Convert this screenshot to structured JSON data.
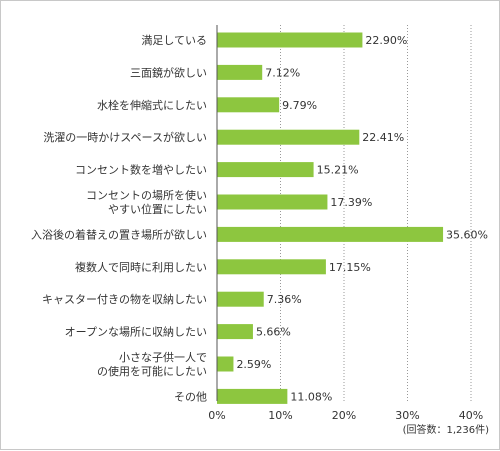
{
  "chart_data": {
    "type": "bar",
    "orientation": "horizontal",
    "categories": [
      [
        "満足している"
      ],
      [
        "三面鏡が欲しい"
      ],
      [
        "水栓を伸縮式にしたい"
      ],
      [
        "洗濯の一時かけスペースが欲しい"
      ],
      [
        "コンセント数を増やしたい"
      ],
      [
        "コンセントの場所を使い",
        "やすい位置にしたい"
      ],
      [
        "入浴後の着替えの置き場所が欲しい"
      ],
      [
        "複数人で同時に利用したい"
      ],
      [
        "キャスター付きの物を収納したい"
      ],
      [
        "オープンな場所に収納したい"
      ],
      [
        "小さな子供一人で",
        "の使用を可能にしたい"
      ],
      [
        "その他"
      ]
    ],
    "values": [
      22.9,
      7.12,
      9.79,
      22.41,
      15.21,
      17.39,
      35.6,
      17.15,
      7.36,
      5.66,
      2.59,
      11.08
    ],
    "value_labels": [
      "22.90%",
      "7.12%",
      "9.79%",
      "22.41%",
      "15.21%",
      "17.39%",
      "35.60%",
      "17.15%",
      "7.36%",
      "5.66%",
      "2.59%",
      "11.08%"
    ],
    "xlim": [
      0,
      40
    ],
    "ticks": [
      0,
      10,
      20,
      30,
      40
    ],
    "tick_labels": [
      "0%",
      "10%",
      "20%",
      "30%",
      "40%"
    ],
    "grid": true,
    "note": "(回答数：1,236件)",
    "bar_color": "#8dc63f",
    "grid_color": "#999999"
  }
}
